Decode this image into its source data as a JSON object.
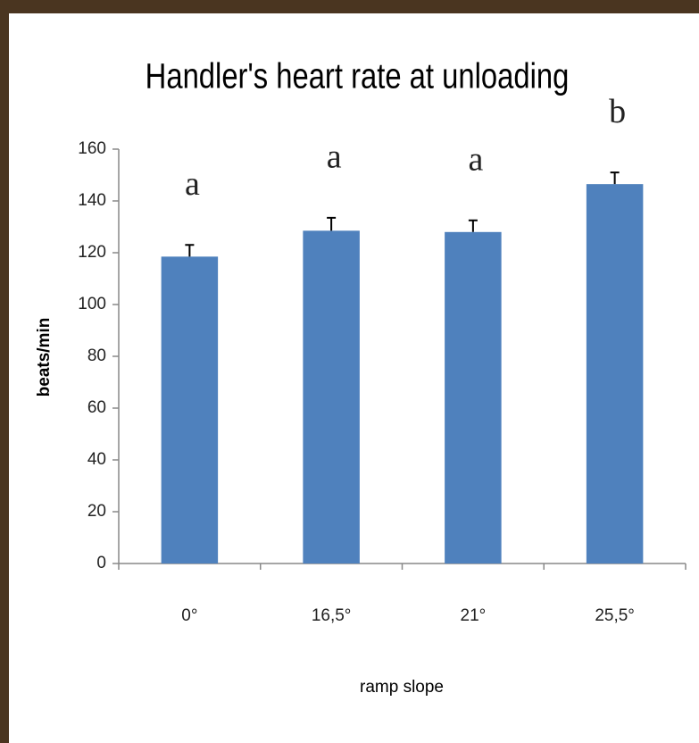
{
  "chart_data": {
    "type": "bar",
    "title": "Handler's heart rate at unloading",
    "x_label": "ramp slope",
    "y_label": "beats/min",
    "categories": [
      "0°",
      "16,5°",
      "21°",
      "25,5°"
    ],
    "values": [
      118.5,
      128.5,
      128,
      146.5
    ],
    "errors": [
      4.5,
      5,
      4.5,
      4.5
    ],
    "annotations": [
      "a",
      "a",
      "a",
      "b"
    ],
    "color": "#4f81bd",
    "ylim": [
      0,
      160
    ],
    "yticks": [
      0,
      20,
      40,
      60,
      80,
      100,
      120,
      140,
      160
    ],
    "grid": false
  }
}
